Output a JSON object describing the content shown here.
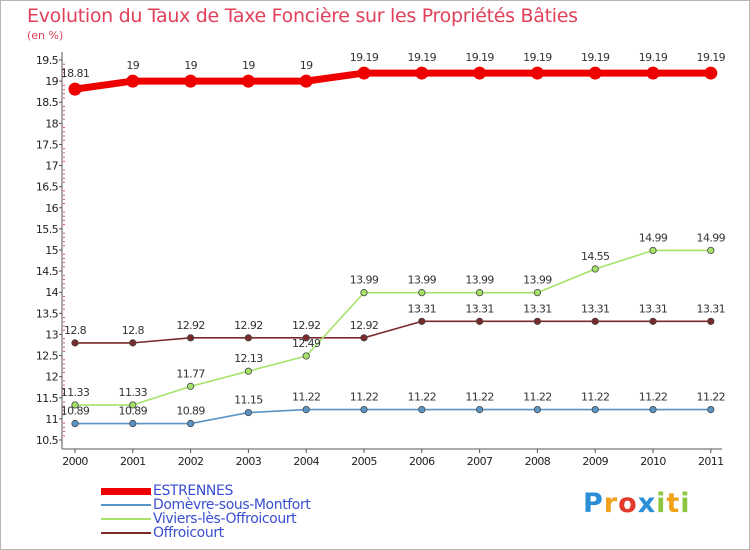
{
  "chart_data": {
    "type": "line",
    "title": "Evolution du Taux de Taxe Foncière sur les Propriétés Bâties",
    "subtitle": "(en %)",
    "xlabel": "",
    "ylabel": "",
    "categories": [
      "2000",
      "2001",
      "2002",
      "2003",
      "2004",
      "2005",
      "2006",
      "2007",
      "2008",
      "2009",
      "2010",
      "2011"
    ],
    "ylim": [
      10.5,
      19.5
    ],
    "yticks": [
      "10.5",
      "11",
      "11.5",
      "12",
      "12.5",
      "13",
      "13.5",
      "14",
      "14.5",
      "15",
      "15.5",
      "16",
      "16.5",
      "17",
      "17.5",
      "18",
      "18.5",
      "19",
      "19.5"
    ],
    "grid": false,
    "legend_position": "bottom-left",
    "series": [
      {
        "name": "ESTRENNES",
        "color": "#ee0000",
        "values": [
          18.81,
          19,
          19,
          19,
          19,
          19.19,
          19.19,
          19.19,
          19.19,
          19.19,
          19.19,
          19.19
        ],
        "labels": [
          "18.81",
          "19",
          "19",
          "19",
          "19",
          "19.19",
          "19.19",
          "19.19",
          "19.19",
          "19.19",
          "19.19",
          "19.19"
        ]
      },
      {
        "name": "Domèvre-sous-Montfort",
        "color": "#5a95c8",
        "values": [
          10.89,
          10.89,
          10.89,
          11.15,
          11.22,
          11.22,
          11.22,
          11.22,
          11.22,
          11.22,
          11.22,
          11.22
        ],
        "labels": [
          "10.89",
          "10.89",
          "10.89",
          "11.15",
          "11.22",
          "11.22",
          "11.22",
          "11.22",
          "11.22",
          "11.22",
          "11.22",
          "11.22"
        ]
      },
      {
        "name": "Viviers-lès-Offroicourt",
        "color": "#a6e26a",
        "values": [
          11.33,
          11.33,
          11.77,
          12.13,
          12.49,
          13.99,
          13.99,
          13.99,
          13.99,
          14.55,
          14.99,
          14.99
        ],
        "labels": [
          "11.33",
          "11.33",
          "11.77",
          "12.13",
          "12.49",
          "13.99",
          "13.99",
          "13.99",
          "13.99",
          "14.55",
          "14.99",
          "14.99"
        ]
      },
      {
        "name": "Offroicourt",
        "color": "#7a2a2a",
        "values": [
          12.8,
          12.8,
          12.92,
          12.92,
          12.92,
          12.92,
          13.31,
          13.31,
          13.31,
          13.31,
          13.31,
          13.31
        ],
        "labels": [
          "12.8",
          "12.8",
          "12.92",
          "12.92",
          "12.92",
          "12.92",
          "13.31",
          "13.31",
          "13.31",
          "13.31",
          "13.31",
          "13.31"
        ]
      }
    ]
  },
  "logo": {
    "letters": [
      "P",
      "r",
      "o",
      "x",
      "i",
      "t",
      "i"
    ],
    "colors": [
      "#2a8fd6",
      "#f0a21a",
      "#e23a2a",
      "#2a8fd6",
      "#8cc63f",
      "#f0a21a",
      "#8cc63f"
    ]
  }
}
